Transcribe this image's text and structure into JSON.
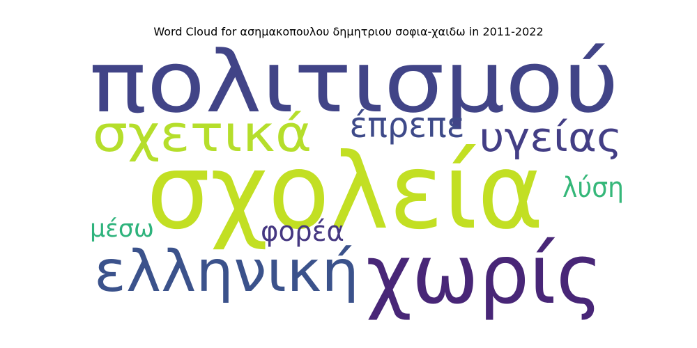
{
  "chart_data": {
    "type": "wordcloud",
    "title": "Word Cloud for ασημακοπουλου δημητριου σοφια-χαιδω in 2011-2022",
    "words": [
      {
        "text": "σχολεία",
        "weight": 100,
        "color": "#c2df23"
      },
      {
        "text": "πολιτισμού",
        "weight": 82,
        "color": "#414487"
      },
      {
        "text": "χωρίς",
        "weight": 78,
        "color": "#482677"
      },
      {
        "text": "ελληνική",
        "weight": 52,
        "color": "#3b528b"
      },
      {
        "text": "σχετικά",
        "weight": 48,
        "color": "#b5de2b"
      },
      {
        "text": "υγείας",
        "weight": 40,
        "color": "#433e85"
      },
      {
        "text": "έπρεπε",
        "weight": 36,
        "color": "#3e4a89"
      },
      {
        "text": "λύση",
        "weight": 26,
        "color": "#35b779"
      },
      {
        "text": "φορέα",
        "weight": 26,
        "color": "#453781"
      },
      {
        "text": "μέσω",
        "weight": 24,
        "color": "#2eb37c"
      }
    ]
  }
}
